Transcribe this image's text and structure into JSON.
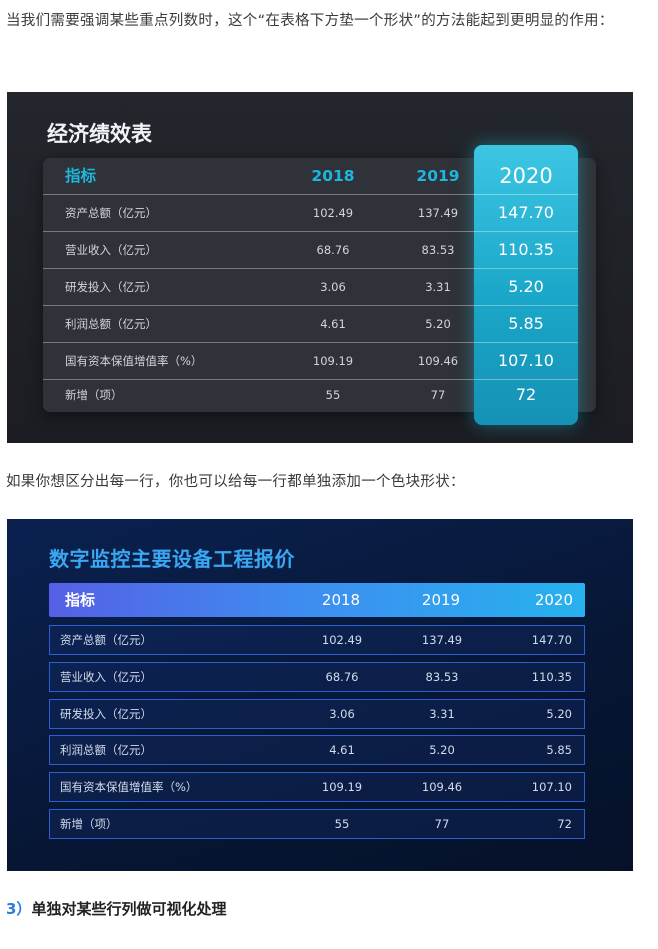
{
  "intro_text": "当我们需要强调某些重点列数时，这个“在表格下方垫一个形状”的方法能起到更明显的作用：",
  "table1": {
    "title": "经济绩效表",
    "headers": [
      "指标",
      "2018",
      "2019",
      "2020"
    ],
    "rows": [
      [
        "资产总额（亿元）",
        "102.49",
        "137.49",
        "147.70"
      ],
      [
        "营业收入（亿元）",
        "68.76",
        "83.53",
        "110.35"
      ],
      [
        "研发投入（亿元）",
        "3.06",
        "3.31",
        "5.20"
      ],
      [
        "利润总额（亿元）",
        "4.61",
        "5.20",
        "5.85"
      ],
      [
        "国有资本保值增值率（%）",
        "109.19",
        "109.46",
        "107.10"
      ],
      [
        "新增（项）",
        "55",
        "77",
        "72"
      ]
    ],
    "highlight_color": "#1aa6c8",
    "header_color": "#1fb6de"
  },
  "middle_text": "如果你想区分出每一行，你也可以给每一行都单独添加一个色块形状：",
  "table2": {
    "title": "数字监控主要设备工程报价",
    "headers": [
      "指标",
      "2018",
      "2019",
      "2020"
    ],
    "rows": [
      [
        "资产总额（亿元）",
        "102.49",
        "137.49",
        "147.70"
      ],
      [
        "营业收入（亿元）",
        "68.76",
        "83.53",
        "110.35"
      ],
      [
        "研发投入（亿元）",
        "3.06",
        "3.31",
        "5.20"
      ],
      [
        "利润总额（亿元）",
        "4.61",
        "5.20",
        "5.85"
      ],
      [
        "国有资本保值增值率（%）",
        "109.19",
        "109.46",
        "107.10"
      ],
      [
        "新增（项）",
        "55",
        "77",
        "72"
      ]
    ],
    "title_color": "#39a7f1",
    "row_border_color": "#2e5fd0"
  },
  "section3": {
    "number": "3）",
    "title": "单独对某些行列做可视化处理"
  }
}
